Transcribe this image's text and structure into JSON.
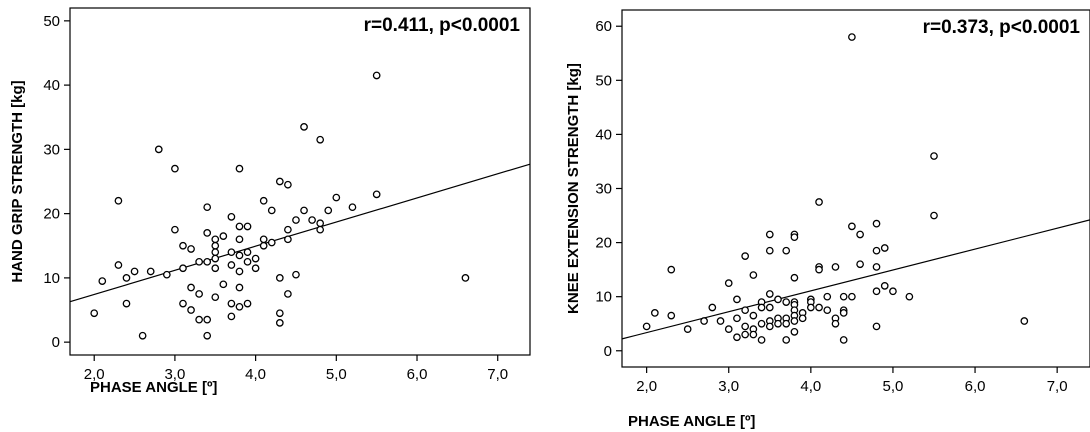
{
  "chart_data": [
    {
      "type": "scatter",
      "title": "",
      "xlabel": "PHASE ANGLE [º]",
      "ylabel": "HAND GRIP STRENGTH [kg]",
      "annotation": "r=0.411, p<0.0001",
      "xlim": [
        1.7,
        7.4
      ],
      "ylim": [
        -2,
        52
      ],
      "xticks": [
        2.0,
        3.0,
        4.0,
        5.0,
        6.0,
        7.0
      ],
      "xtick_labels": [
        "2,0",
        "3,0",
        "4,0",
        "5,0",
        "6,0",
        "7,0"
      ],
      "yticks": [
        0,
        10,
        20,
        30,
        40,
        50
      ],
      "ytick_labels": [
        "0",
        "10",
        "20",
        "30",
        "40",
        "50"
      ],
      "grid": false,
      "fit_line": {
        "x": [
          1.7,
          7.4
        ],
        "y": [
          6.3,
          27.7
        ]
      },
      "points": [
        [
          2.0,
          4.5
        ],
        [
          2.1,
          9.5
        ],
        [
          2.3,
          22
        ],
        [
          2.3,
          12
        ],
        [
          2.4,
          6
        ],
        [
          2.4,
          10
        ],
        [
          2.5,
          11
        ],
        [
          2.6,
          1
        ],
        [
          2.7,
          11
        ],
        [
          2.8,
          30
        ],
        [
          2.9,
          10.5
        ],
        [
          3.0,
          27
        ],
        [
          3.0,
          17.5
        ],
        [
          3.1,
          15
        ],
        [
          3.1,
          11.5
        ],
        [
          3.1,
          6
        ],
        [
          3.2,
          14.5
        ],
        [
          3.2,
          8.5
        ],
        [
          3.2,
          5
        ],
        [
          3.3,
          12.5
        ],
        [
          3.3,
          7.5
        ],
        [
          3.3,
          3.5
        ],
        [
          3.4,
          21
        ],
        [
          3.4,
          17
        ],
        [
          3.4,
          12.5
        ],
        [
          3.4,
          3.5
        ],
        [
          3.5,
          16
        ],
        [
          3.5,
          15
        ],
        [
          3.5,
          14
        ],
        [
          3.5,
          13
        ],
        [
          3.5,
          11.5
        ],
        [
          3.5,
          7
        ],
        [
          3.6,
          16.5
        ],
        [
          3.6,
          9
        ],
        [
          3.7,
          19.5
        ],
        [
          3.7,
          14
        ],
        [
          3.7,
          12
        ],
        [
          3.7,
          6
        ],
        [
          3.7,
          4
        ],
        [
          3.8,
          27
        ],
        [
          3.8,
          18
        ],
        [
          3.8,
          16
        ],
        [
          3.8,
          13.5
        ],
        [
          3.8,
          11
        ],
        [
          3.8,
          8.5
        ],
        [
          3.8,
          5.5
        ],
        [
          3.9,
          18
        ],
        [
          3.9,
          14
        ],
        [
          3.9,
          12.5
        ],
        [
          3.9,
          6
        ],
        [
          4.0,
          11.5
        ],
        [
          4.0,
          13
        ],
        [
          4.1,
          15
        ],
        [
          4.1,
          22
        ],
        [
          4.1,
          16
        ],
        [
          4.2,
          20.5
        ],
        [
          4.2,
          15.5
        ],
        [
          4.3,
          25
        ],
        [
          4.3,
          10
        ],
        [
          4.3,
          4.5
        ],
        [
          4.3,
          3
        ],
        [
          4.4,
          24.5
        ],
        [
          4.4,
          17.5
        ],
        [
          4.4,
          16
        ],
        [
          4.4,
          7.5
        ],
        [
          4.5,
          19
        ],
        [
          4.5,
          10.5
        ],
        [
          4.6,
          33.5
        ],
        [
          4.6,
          20.5
        ],
        [
          4.7,
          19
        ],
        [
          4.8,
          31.5
        ],
        [
          4.8,
          18.5
        ],
        [
          4.8,
          17.5
        ],
        [
          4.9,
          20.5
        ],
        [
          5.0,
          22.5
        ],
        [
          5.2,
          21
        ],
        [
          5.5,
          41.5
        ],
        [
          5.5,
          23
        ],
        [
          6.6,
          10
        ],
        [
          3.4,
          1
        ]
      ]
    },
    {
      "type": "scatter",
      "title": "",
      "xlabel": "PHASE ANGLE [º]",
      "ylabel": "KNEE EXTENSION STRENGTH [kg]",
      "annotation": "r=0.373, p<0.0001",
      "xlim": [
        1.7,
        7.4
      ],
      "ylim": [
        -3,
        63
      ],
      "xticks": [
        2.0,
        3.0,
        4.0,
        5.0,
        6.0,
        7.0
      ],
      "xtick_labels": [
        "2,0",
        "3,0",
        "4,0",
        "5,0",
        "6,0",
        "7,0"
      ],
      "yticks": [
        0,
        10,
        20,
        30,
        40,
        50,
        60
      ],
      "ytick_labels": [
        "0",
        "10",
        "20",
        "30",
        "40",
        "50",
        "60"
      ],
      "grid": false,
      "fit_line": {
        "x": [
          1.7,
          7.4
        ],
        "y": [
          2.2,
          24.2
        ]
      },
      "points": [
        [
          2.0,
          4.5
        ],
        [
          2.1,
          7
        ],
        [
          2.3,
          15
        ],
        [
          2.3,
          6.5
        ],
        [
          2.5,
          4
        ],
        [
          2.7,
          5.5
        ],
        [
          2.8,
          8
        ],
        [
          2.9,
          5.5
        ],
        [
          3.0,
          12.5
        ],
        [
          3.0,
          4
        ],
        [
          3.1,
          9.5
        ],
        [
          3.1,
          6
        ],
        [
          3.1,
          2.5
        ],
        [
          3.2,
          17.5
        ],
        [
          3.2,
          7.5
        ],
        [
          3.2,
          4.5
        ],
        [
          3.2,
          3
        ],
        [
          3.3,
          14
        ],
        [
          3.3,
          6.5
        ],
        [
          3.3,
          4
        ],
        [
          3.3,
          3
        ],
        [
          3.4,
          9
        ],
        [
          3.4,
          8
        ],
        [
          3.4,
          5
        ],
        [
          3.4,
          2
        ],
        [
          3.5,
          21.5
        ],
        [
          3.5,
          18.5
        ],
        [
          3.5,
          10.5
        ],
        [
          3.5,
          8
        ],
        [
          3.5,
          5.5
        ],
        [
          3.5,
          4.5
        ],
        [
          3.6,
          9.5
        ],
        [
          3.6,
          6
        ],
        [
          3.6,
          5
        ],
        [
          3.7,
          18.5
        ],
        [
          3.7,
          9
        ],
        [
          3.7,
          6
        ],
        [
          3.7,
          5
        ],
        [
          3.7,
          2
        ],
        [
          3.8,
          21.5
        ],
        [
          3.8,
          21
        ],
        [
          3.8,
          13.5
        ],
        [
          3.8,
          9
        ],
        [
          3.8,
          8.5
        ],
        [
          3.8,
          7.5
        ],
        [
          3.8,
          6.5
        ],
        [
          3.8,
          5.5
        ],
        [
          3.8,
          3.5
        ],
        [
          3.9,
          7
        ],
        [
          3.9,
          6
        ],
        [
          4.0,
          9.5
        ],
        [
          4.0,
          9
        ],
        [
          4.0,
          8
        ],
        [
          4.1,
          27.5
        ],
        [
          4.1,
          15.5
        ],
        [
          4.1,
          15
        ],
        [
          4.1,
          8
        ],
        [
          4.2,
          10
        ],
        [
          4.2,
          7.5
        ],
        [
          4.3,
          15.5
        ],
        [
          4.3,
          6
        ],
        [
          4.3,
          5
        ],
        [
          4.4,
          10
        ],
        [
          4.4,
          7.5
        ],
        [
          4.4,
          7
        ],
        [
          4.4,
          2
        ],
        [
          4.5,
          58
        ],
        [
          4.5,
          23
        ],
        [
          4.5,
          10
        ],
        [
          4.6,
          21.5
        ],
        [
          4.6,
          16
        ],
        [
          4.8,
          23.5
        ],
        [
          4.8,
          18.5
        ],
        [
          4.8,
          15.5
        ],
        [
          4.8,
          11
        ],
        [
          4.8,
          4.5
        ],
        [
          4.9,
          12
        ],
        [
          4.9,
          19
        ],
        [
          5.0,
          11
        ],
        [
          5.2,
          10
        ],
        [
          5.5,
          36
        ],
        [
          5.5,
          25
        ],
        [
          6.6,
          5.5
        ]
      ]
    }
  ]
}
